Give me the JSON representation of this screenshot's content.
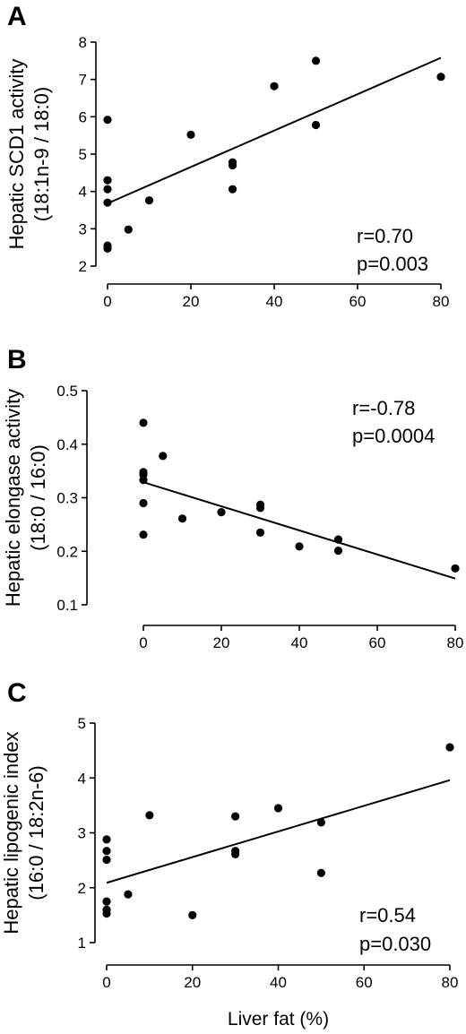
{
  "chart_data": [
    {
      "type": "scatter",
      "panel": "A",
      "title": "",
      "xlabel": "",
      "ylabel": [
        "Hepatic SCD1 activity",
        "(18:1n-9 / 18:0)"
      ],
      "xlim": [
        0,
        80
      ],
      "ylim": [
        2,
        8
      ],
      "xticks": [
        0,
        20,
        40,
        60,
        80
      ],
      "yticks": [
        2,
        3,
        4,
        5,
        6,
        7,
        8
      ],
      "grid": false,
      "points": [
        {
          "x": 0,
          "y": 5.92
        },
        {
          "x": 0,
          "y": 4.3
        },
        {
          "x": 0,
          "y": 4.06
        },
        {
          "x": 0,
          "y": 3.7
        },
        {
          "x": 0,
          "y": 2.55
        },
        {
          "x": 0,
          "y": 2.47
        },
        {
          "x": 5,
          "y": 2.98
        },
        {
          "x": 10,
          "y": 3.76
        },
        {
          "x": 20,
          "y": 5.52
        },
        {
          "x": 30,
          "y": 4.78
        },
        {
          "x": 30,
          "y": 4.7
        },
        {
          "x": 30,
          "y": 4.06
        },
        {
          "x": 40,
          "y": 6.82
        },
        {
          "x": 50,
          "y": 7.5
        },
        {
          "x": 50,
          "y": 5.78
        },
        {
          "x": 80,
          "y": 7.07
        }
      ],
      "fit_line": {
        "x": [
          0,
          80
        ],
        "y": [
          3.68,
          7.58
        ]
      },
      "annotation": [
        "r=0.70",
        "p=0.003"
      ]
    },
    {
      "type": "scatter",
      "panel": "B",
      "title": "",
      "xlabel": "",
      "ylabel": [
        "Hepatic elongase activity",
        "(18:0 / 16:0)"
      ],
      "xlim": [
        0,
        80
      ],
      "ylim": [
        0.1,
        0.5
      ],
      "xticks": [
        0,
        20,
        40,
        60,
        80
      ],
      "yticks": [
        0.1,
        0.2,
        0.3,
        0.4,
        0.5
      ],
      "grid": false,
      "points": [
        {
          "x": 0,
          "y": 0.44
        },
        {
          "x": 0,
          "y": 0.348
        },
        {
          "x": 0,
          "y": 0.343
        },
        {
          "x": 0,
          "y": 0.333
        },
        {
          "x": 0,
          "y": 0.29
        },
        {
          "x": 0,
          "y": 0.231
        },
        {
          "x": 5,
          "y": 0.378
        },
        {
          "x": 10,
          "y": 0.261
        },
        {
          "x": 20,
          "y": 0.273
        },
        {
          "x": 30,
          "y": 0.287
        },
        {
          "x": 30,
          "y": 0.281
        },
        {
          "x": 30,
          "y": 0.235
        },
        {
          "x": 40,
          "y": 0.209
        },
        {
          "x": 50,
          "y": 0.222
        },
        {
          "x": 50,
          "y": 0.201
        },
        {
          "x": 80,
          "y": 0.168
        }
      ],
      "fit_line": {
        "x": [
          0,
          80
        ],
        "y": [
          0.329,
          0.149
        ]
      },
      "annotation": [
        "r=-0.78",
        "p=0.0004"
      ]
    },
    {
      "type": "scatter",
      "panel": "C",
      "title": "",
      "xlabel": "Liver fat  (%)",
      "ylabel": [
        "Hepatic lipogenic index",
        "(16:0 / 18:2n-6)"
      ],
      "xlim": [
        0,
        80
      ],
      "ylim": [
        1,
        5
      ],
      "xticks": [
        0,
        20,
        40,
        60,
        80
      ],
      "yticks": [
        1,
        2,
        3,
        4,
        5
      ],
      "grid": false,
      "points": [
        {
          "x": 0,
          "y": 2.88
        },
        {
          "x": 0,
          "y": 2.67
        },
        {
          "x": 0,
          "y": 2.51
        },
        {
          "x": 0,
          "y": 1.75
        },
        {
          "x": 0,
          "y": 1.6
        },
        {
          "x": 0,
          "y": 1.53
        },
        {
          "x": 5,
          "y": 1.88
        },
        {
          "x": 10,
          "y": 3.32
        },
        {
          "x": 20,
          "y": 1.5
        },
        {
          "x": 30,
          "y": 3.3
        },
        {
          "x": 30,
          "y": 2.67
        },
        {
          "x": 30,
          "y": 2.61
        },
        {
          "x": 40,
          "y": 3.45
        },
        {
          "x": 50,
          "y": 3.19
        },
        {
          "x": 50,
          "y": 2.27
        },
        {
          "x": 80,
          "y": 4.56
        }
      ],
      "fit_line": {
        "x": [
          0,
          80
        ],
        "y": [
          2.09,
          3.96
        ]
      },
      "annotation": [
        "r=0.54",
        "p=0.030"
      ]
    }
  ]
}
